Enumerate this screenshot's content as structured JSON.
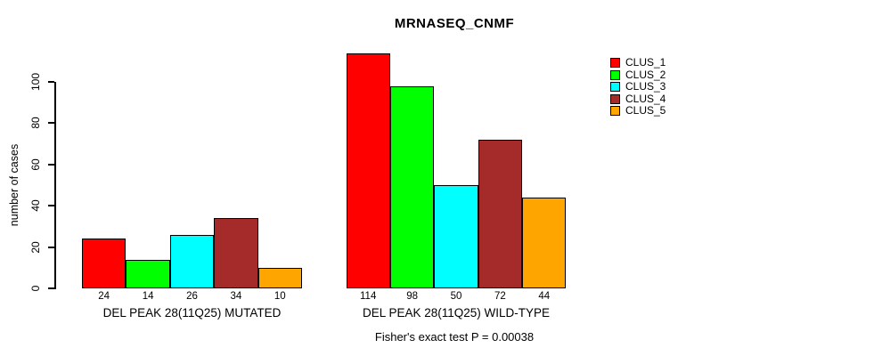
{
  "title": "MRNASEQ_CNMF",
  "ylabel": "number of cases",
  "footer": "Fisher's exact test P = 0.00038",
  "background_color": "#ffffff",
  "text_color": "#000000",
  "chart_data": {
    "type": "bar",
    "title": "MRNASEQ_CNMF",
    "xlabel": "",
    "ylabel": "number of cases",
    "ylim": [
      0,
      120
    ],
    "yticks": [
      0,
      20,
      40,
      60,
      80,
      100
    ],
    "grid": false,
    "legend_position": "right",
    "legend_labels": [
      "CLUS_1",
      "CLUS_2",
      "CLUS_3",
      "CLUS_4",
      "CLUS_5"
    ],
    "series_colors": [
      "#FF0000",
      "#00FF00",
      "#00FFFF",
      "#A52A2A",
      "#FFA500"
    ],
    "groups": [
      {
        "label": "DEL PEAK 28(11Q25) MUTATED",
        "values": [
          24,
          14,
          26,
          34,
          10
        ]
      },
      {
        "label": "DEL PEAK 28(11Q25) WILD-TYPE",
        "values": [
          114,
          98,
          50,
          72,
          44
        ]
      }
    ],
    "annotation": "Fisher's exact test P = 0.00038"
  }
}
